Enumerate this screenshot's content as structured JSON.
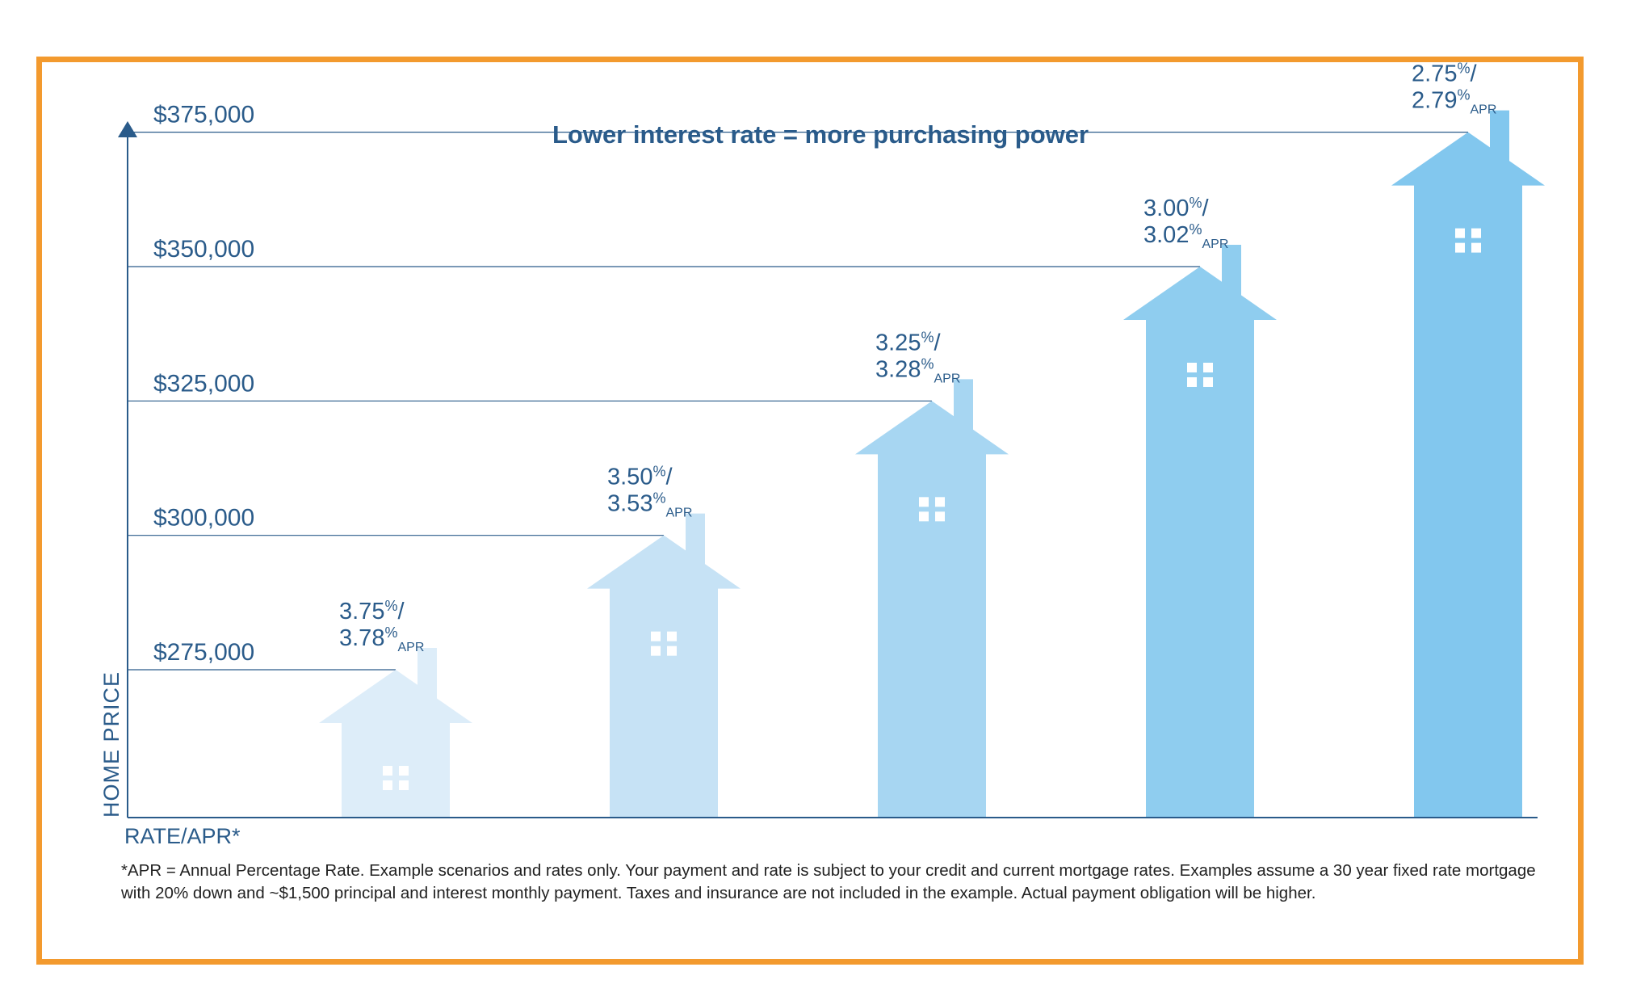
{
  "chart_data": {
    "type": "bar",
    "title": "Lower interest rate = more purchasing power",
    "ylabel": "HOME PRICE",
    "xlabel": "RATE/APR*",
    "ylim": [
      247500,
      377500
    ],
    "ticks": [
      {
        "value": 275000,
        "label": "$275,000"
      },
      {
        "value": 300000,
        "label": "$300,000"
      },
      {
        "value": 325000,
        "label": "$325,000"
      },
      {
        "value": 350000,
        "label": "$350,000"
      },
      {
        "value": 375000,
        "label": "$375,000"
      }
    ],
    "categories": [
      {
        "rate": "3.75",
        "apr": "3.78",
        "value": 275000,
        "color": "#ddedf9"
      },
      {
        "rate": "3.50",
        "apr": "3.53",
        "value": 300000,
        "color": "#c6e2f5"
      },
      {
        "rate": "3.25",
        "apr": "3.28",
        "value": 325000,
        "color": "#a7d6f2"
      },
      {
        "rate": "3.00",
        "apr": "3.02",
        "value": 350000,
        "color": "#8fcdef"
      },
      {
        "rate": "2.75",
        "apr": "2.79",
        "value": 375000,
        "color": "#82c7ee"
      }
    ],
    "rate_suffix": "%/",
    "percent_sign": "%",
    "apr_suffix": "APR",
    "grid": false,
    "legend": "none"
  },
  "footnote": "*APR = Annual Percentage Rate. Example scenarios and rates only. Your payment and rate is subject to your credit and current mortgage rates. Examples assume a 30 year fixed rate mortgage with 20% down and ~$1,500 principal and interest monthly payment. Taxes and insurance are not included in the example. Actual payment obligation will be higher.",
  "colors": {
    "frame": "#f39a2e",
    "text_blue": "#2a5b8a",
    "axis": "#2a5b8a",
    "window": "#ffffff"
  }
}
